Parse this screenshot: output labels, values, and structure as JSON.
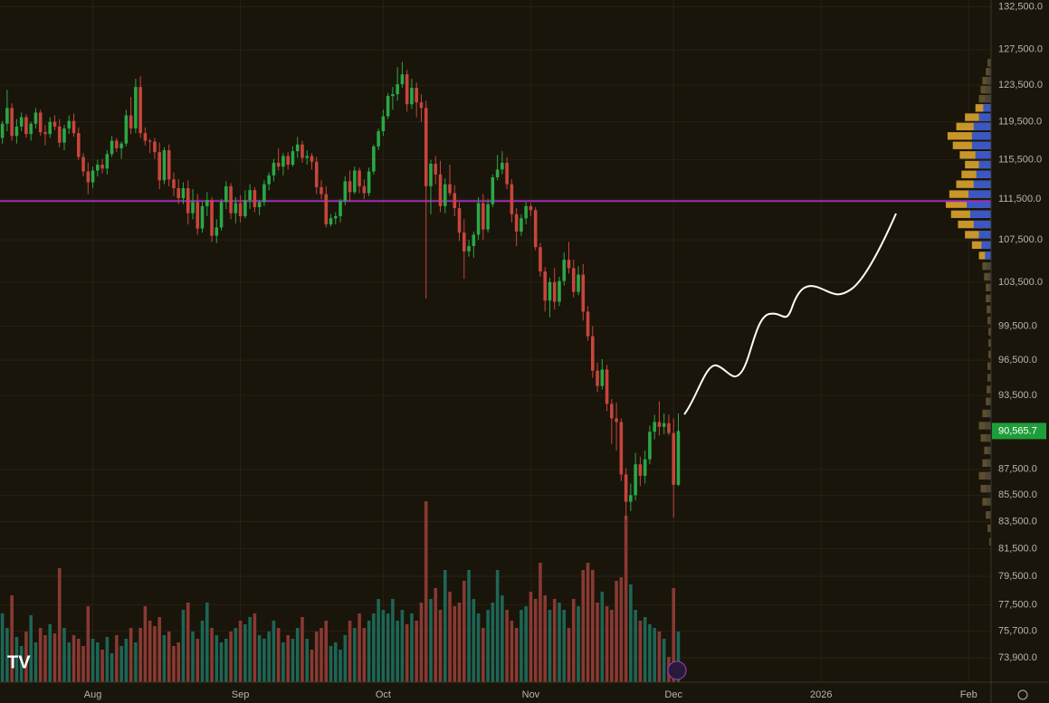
{
  "chart_data": {
    "type": "candlestick",
    "log_scale": true,
    "grid": true,
    "ylim": [
      72300,
      133300
    ],
    "yticks": [
      {
        "value": 132500,
        "label": "132,500.0"
      },
      {
        "value": 127500,
        "label": "127,500.0"
      },
      {
        "value": 123500,
        "label": "123,500.0"
      },
      {
        "value": 119500,
        "label": "119,500.0"
      },
      {
        "value": 115500,
        "label": "115,500.0"
      },
      {
        "value": 111500,
        "label": "111,500.0"
      },
      {
        "value": 107500,
        "label": "107,500.0"
      },
      {
        "value": 103500,
        "label": "103,500.0"
      },
      {
        "value": 99500,
        "label": "99,500.0"
      },
      {
        "value": 96500,
        "label": "96,500.0"
      },
      {
        "value": 93500,
        "label": "93,500.0"
      },
      {
        "value": 87500,
        "label": "87,500.0"
      },
      {
        "value": 85500,
        "label": "85,500.0"
      },
      {
        "value": 83500,
        "label": "83,500.0"
      },
      {
        "value": 81500,
        "label": "81,500.0"
      },
      {
        "value": 79500,
        "label": "79,500.0"
      },
      {
        "value": 77500,
        "label": "77,500.0"
      },
      {
        "value": 75700,
        "label": "75,700.0"
      },
      {
        "value": 73900,
        "label": "73,900.0"
      }
    ],
    "xlim": [
      -0.5,
      207.7
    ],
    "xticks": [
      {
        "value": 19,
        "label": "Aug"
      },
      {
        "value": 50,
        "label": "Sep"
      },
      {
        "value": 80,
        "label": "Oct"
      },
      {
        "value": 111,
        "label": "Nov"
      },
      {
        "value": 141,
        "label": "Dec"
      },
      {
        "value": 172,
        "label": "2026"
      },
      {
        "value": 203,
        "label": "Feb"
      }
    ],
    "up_color": "#2aa846",
    "down_color": "#c8453c",
    "volume_up_color": "#1d6656",
    "volume_down_color": "#8a3933",
    "candles": [
      [
        117800,
        119600,
        117200,
        119300
      ],
      [
        119300,
        123000,
        118500,
        121000
      ],
      [
        121000,
        121500,
        117500,
        118000
      ],
      [
        118000,
        119800,
        117200,
        119000
      ],
      [
        119000,
        120500,
        118500,
        120000
      ],
      [
        120000,
        120300,
        117800,
        118200
      ],
      [
        118200,
        119500,
        117500,
        119300
      ],
      [
        119300,
        121000,
        118800,
        120500
      ],
      [
        120500,
        120800,
        118000,
        118400
      ],
      [
        118400,
        119200,
        117000,
        118200
      ],
      [
        118200,
        120000,
        117800,
        119500
      ],
      [
        119500,
        120200,
        118600,
        119000
      ],
      [
        119000,
        119800,
        116800,
        117300
      ],
      [
        117300,
        119200,
        116500,
        118800
      ],
      [
        118800,
        120200,
        118200,
        119600
      ],
      [
        119600,
        120400,
        117900,
        118300
      ],
      [
        118300,
        118900,
        115500,
        115800
      ],
      [
        115800,
        116200,
        113800,
        114300
      ],
      [
        114300,
        115200,
        112000,
        113200
      ],
      [
        113200,
        114800,
        112600,
        114400
      ],
      [
        114400,
        115500,
        113800,
        115000
      ],
      [
        115000,
        115600,
        114100,
        114600
      ],
      [
        114600,
        116500,
        114000,
        116100
      ],
      [
        116100,
        118000,
        115800,
        117500
      ],
      [
        117500,
        117800,
        116300,
        116700
      ],
      [
        116700,
        117400,
        115600,
        117200
      ],
      [
        117200,
        120800,
        116900,
        120200
      ],
      [
        120200,
        122200,
        118200,
        118800
      ],
      [
        118800,
        124200,
        118300,
        123300
      ],
      [
        123300,
        124500,
        117800,
        118300
      ],
      [
        118300,
        118900,
        117000,
        117500
      ],
      [
        117500,
        117700,
        116200,
        117400
      ],
      [
        117400,
        117800,
        115600,
        116300
      ],
      [
        116300,
        117300,
        112500,
        113400
      ],
      [
        113400,
        116800,
        113000,
        116500
      ],
      [
        116500,
        117100,
        112800,
        113500
      ],
      [
        113500,
        114200,
        111800,
        112600
      ],
      [
        112600,
        113500,
        111000,
        111600
      ],
      [
        111600,
        113200,
        111000,
        112600
      ],
      [
        112600,
        113400,
        109000,
        110100
      ],
      [
        110100,
        112500,
        109500,
        111200
      ],
      [
        111200,
        112000,
        108000,
        108600
      ],
      [
        108600,
        111200,
        108200,
        110800
      ],
      [
        110800,
        112200,
        109800,
        111400
      ],
      [
        111400,
        111700,
        107300,
        107900
      ],
      [
        107900,
        109500,
        107200,
        108700
      ],
      [
        108700,
        111500,
        108400,
        111200
      ],
      [
        111200,
        113300,
        110500,
        112800
      ],
      [
        112800,
        113100,
        109500,
        110100
      ],
      [
        110100,
        111700,
        109100,
        111100
      ],
      [
        111100,
        111900,
        109200,
        109800
      ],
      [
        109800,
        112400,
        109600,
        111400
      ],
      [
        111400,
        113000,
        110500,
        112400
      ],
      [
        112400,
        112700,
        110200,
        110700
      ],
      [
        110700,
        111400,
        109900,
        111200
      ],
      [
        111200,
        113400,
        110800,
        113000
      ],
      [
        113000,
        114200,
        112400,
        113900
      ],
      [
        113900,
        115600,
        113300,
        115200
      ],
      [
        115200,
        116700,
        114400,
        114800
      ],
      [
        114800,
        116200,
        113900,
        115900
      ],
      [
        115900,
        116300,
        114500,
        115000
      ],
      [
        115000,
        116900,
        114800,
        116400
      ],
      [
        116400,
        117900,
        115700,
        117100
      ],
      [
        117100,
        117500,
        115200,
        115700
      ],
      [
        115700,
        116500,
        115000,
        115900
      ],
      [
        115900,
        116200,
        114500,
        115300
      ],
      [
        115300,
        115800,
        112000,
        112700
      ],
      [
        112700,
        113400,
        111500,
        112000
      ],
      [
        112000,
        112800,
        108700,
        109000
      ],
      [
        109000,
        110000,
        108800,
        109600
      ],
      [
        109600,
        110200,
        109000,
        109800
      ],
      [
        109800,
        111500,
        109200,
        111300
      ],
      [
        111300,
        113800,
        110900,
        113300
      ],
      [
        113300,
        114400,
        111300,
        112200
      ],
      [
        112200,
        114800,
        112000,
        114400
      ],
      [
        114400,
        114700,
        112100,
        112800
      ],
      [
        112800,
        113500,
        111500,
        112100
      ],
      [
        112100,
        114700,
        111800,
        114300
      ],
      [
        114300,
        117100,
        114000,
        116900
      ],
      [
        116900,
        118800,
        116500,
        118500
      ],
      [
        118500,
        120800,
        118000,
        120100
      ],
      [
        120100,
        122600,
        119800,
        122300
      ],
      [
        122300,
        123300,
        120800,
        122500
      ],
      [
        122500,
        125500,
        121800,
        123600
      ],
      [
        123600,
        126100,
        123200,
        124700
      ],
      [
        124700,
        125200,
        120600,
        121400
      ],
      [
        121400,
        124200,
        120900,
        123200
      ],
      [
        123200,
        123800,
        120000,
        121600
      ],
      [
        121600,
        122500,
        119500,
        121000
      ],
      [
        121000,
        121800,
        102000,
        112800
      ],
      [
        112800,
        115500,
        110000,
        115100
      ],
      [
        115100,
        115900,
        113000,
        114000
      ],
      [
        114000,
        115400,
        110200,
        110800
      ],
      [
        110800,
        113600,
        110100,
        113000
      ],
      [
        113000,
        115000,
        111800,
        112100
      ],
      [
        112100,
        112900,
        109800,
        110600
      ],
      [
        110600,
        111200,
        107400,
        108200
      ],
      [
        108200,
        109500,
        103800,
        106400
      ],
      [
        106400,
        107500,
        105900,
        106900
      ],
      [
        106900,
        108300,
        105800,
        108000
      ],
      [
        108000,
        111700,
        107500,
        111100
      ],
      [
        111100,
        112000,
        107500,
        108500
      ],
      [
        108500,
        111500,
        108200,
        111000
      ],
      [
        111000,
        114000,
        110700,
        113700
      ],
      [
        113700,
        116000,
        113400,
        114500
      ],
      [
        114500,
        116400,
        114000,
        115200
      ],
      [
        115200,
        115800,
        112500,
        113000
      ],
      [
        113000,
        113500,
        109200,
        110000
      ],
      [
        110000,
        110600,
        106900,
        108300
      ],
      [
        108300,
        110000,
        107900,
        109600
      ],
      [
        109600,
        111200,
        109000,
        110800
      ],
      [
        110800,
        111100,
        109800,
        110400
      ],
      [
        110400,
        110700,
        106500,
        106800
      ],
      [
        106800,
        107200,
        104000,
        104500
      ],
      [
        104500,
        104900,
        100800,
        101800
      ],
      [
        101800,
        103900,
        100300,
        103500
      ],
      [
        103500,
        104800,
        101000,
        101700
      ],
      [
        101700,
        104000,
        101300,
        103600
      ],
      [
        103600,
        106300,
        103200,
        105600
      ],
      [
        105600,
        107300,
        104300,
        104800
      ],
      [
        104800,
        105600,
        102100,
        102600
      ],
      [
        102600,
        105000,
        102300,
        104200
      ],
      [
        104200,
        105200,
        100000,
        100800
      ],
      [
        100800,
        101300,
        98200,
        98600
      ],
      [
        98600,
        99500,
        95000,
        95600
      ],
      [
        95600,
        96300,
        93800,
        94300
      ],
      [
        94300,
        96600,
        94000,
        95700
      ],
      [
        95700,
        96100,
        92200,
        92800
      ],
      [
        92800,
        93200,
        89500,
        91600
      ],
      [
        91600,
        92900,
        89000,
        91300
      ],
      [
        91300,
        91600,
        86600,
        87100
      ],
      [
        87100,
        87600,
        83600,
        85000
      ],
      [
        85000,
        86400,
        84300,
        85500
      ],
      [
        85500,
        88800,
        85100,
        87900
      ],
      [
        87900,
        88500,
        86200,
        87000
      ],
      [
        87000,
        89000,
        86400,
        88300
      ],
      [
        88300,
        91000,
        87900,
        90500
      ],
      [
        90500,
        91900,
        89900,
        91300
      ],
      [
        91300,
        93000,
        90200,
        90900
      ],
      [
        90900,
        92000,
        90300,
        91200
      ],
      [
        91200,
        91900,
        90200,
        90400
      ],
      [
        90400,
        91600,
        83800,
        86300
      ],
      [
        86300,
        92000,
        86200,
        90565.7
      ]
    ],
    "volume": [
      38,
      30,
      48,
      25,
      20,
      28,
      37,
      22,
      30,
      26,
      32,
      27,
      63,
      30,
      22,
      26,
      24,
      20,
      42,
      24,
      22,
      18,
      25,
      16,
      26,
      20,
      24,
      30,
      22,
      30,
      42,
      34,
      31,
      36,
      26,
      28,
      20,
      22,
      40,
      44,
      28,
      24,
      34,
      44,
      30,
      26,
      22,
      24,
      28,
      30,
      34,
      32,
      36,
      38,
      26,
      24,
      28,
      34,
      30,
      22,
      26,
      24,
      30,
      36,
      24,
      18,
      28,
      30,
      34,
      20,
      22,
      18,
      26,
      34,
      30,
      38,
      30,
      34,
      38,
      46,
      40,
      38,
      46,
      34,
      40,
      32,
      38,
      34,
      44,
      100,
      46,
      52,
      40,
      62,
      50,
      42,
      44,
      56,
      62,
      46,
      38,
      30,
      40,
      44,
      62,
      48,
      40,
      34,
      30,
      40,
      42,
      50,
      46,
      66,
      48,
      40,
      46,
      44,
      40,
      30,
      46,
      42,
      62,
      66,
      62,
      44,
      50,
      42,
      40,
      56,
      58,
      92,
      54,
      40,
      34,
      36,
      32,
      30,
      28,
      24,
      14,
      52,
      28
    ],
    "last_price_label": "90,565.7",
    "last_price_color": "#1f9d3a",
    "hline": 111300,
    "hline_color": "#9b2fb5",
    "volume_profile": {
      "value_area": [
        105500,
        121500
      ],
      "up_color": "#3b57c4",
      "down_color": "#c9962a",
      "outside_up_color": "#4a4536",
      "outside_down_color": "#5e4f2a",
      "prices": [
        126000,
        125000,
        124000,
        123000,
        122000,
        121000,
        120000,
        119000,
        118000,
        117000,
        116000,
        115000,
        114000,
        113000,
        112000,
        111000,
        110000,
        109000,
        108000,
        107000,
        106000,
        105000,
        104000,
        103000,
        102000,
        101000,
        100000,
        99000,
        98000,
        97000,
        96000,
        95000,
        94000,
        93000,
        92000,
        91000,
        90000,
        89000,
        88000,
        87000,
        86000,
        85000,
        84000,
        83000,
        82000
      ],
      "total": [
        4,
        6,
        10,
        12,
        14,
        18,
        30,
        40,
        50,
        44,
        36,
        30,
        34,
        40,
        48,
        52,
        46,
        38,
        30,
        22,
        14,
        10,
        8,
        6,
        6,
        5,
        4,
        3,
        3,
        3,
        4,
        4,
        5,
        6,
        10,
        14,
        12,
        8,
        10,
        14,
        12,
        10,
        6,
        4,
        2
      ],
      "up": [
        2,
        3,
        5,
        6,
        7,
        9,
        14,
        20,
        22,
        22,
        18,
        14,
        17,
        20,
        26,
        28,
        24,
        20,
        14,
        11,
        7,
        5,
        4,
        3,
        3,
        2,
        2,
        1,
        1,
        1,
        2,
        2,
        2,
        3,
        5,
        7,
        6,
        4,
        5,
        7,
        6,
        5,
        3,
        2,
        1
      ]
    }
  }
}
